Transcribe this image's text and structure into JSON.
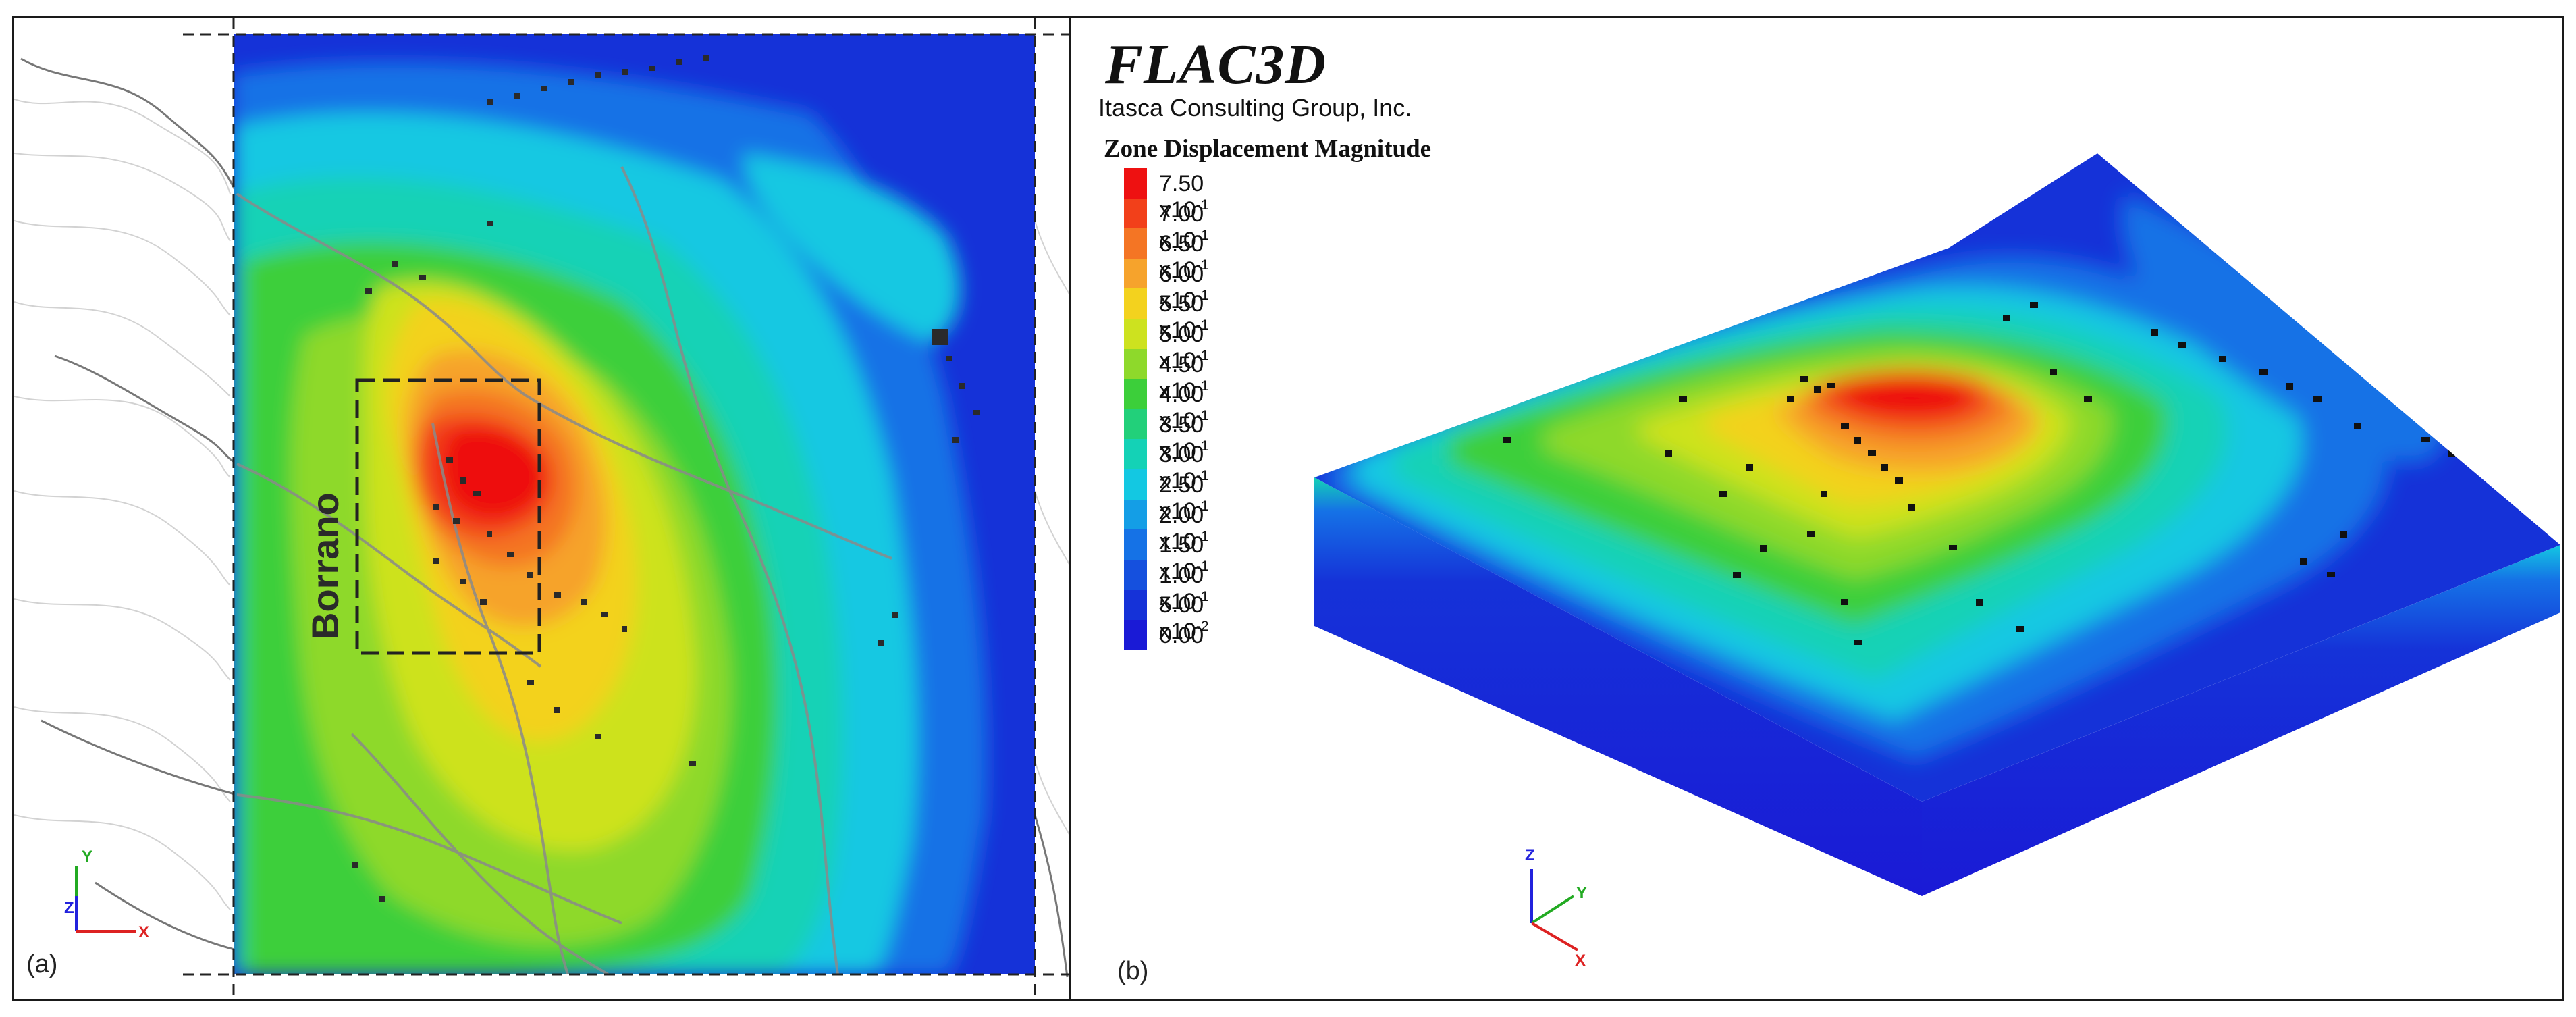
{
  "panel_a": {
    "label": "(a)",
    "place_label": "Borrano",
    "axis_labels": {
      "y": "Y",
      "z": "Z",
      "x": "X"
    }
  },
  "panel_b": {
    "label": "(b)",
    "title": "FLAC3D",
    "company": "Itasca Consulting Group, Inc.",
    "legend_title": "Zone Displacement Magnitude",
    "legend": [
      {
        "mantissa": "7.50 x10",
        "exp": "-1",
        "color": "#ee1111"
      },
      {
        "mantissa": "7.00 x10",
        "exp": "-1",
        "color": "#f2401a"
      },
      {
        "mantissa": "6.50 x10",
        "exp": "-1",
        "color": "#f47524"
      },
      {
        "mantissa": "6.00 x10",
        "exp": "-1",
        "color": "#f6a32c"
      },
      {
        "mantissa": "5.50 x10",
        "exp": "-1",
        "color": "#f3d21e"
      },
      {
        "mantissa": "5.00 x10",
        "exp": "-1",
        "color": "#cde21f"
      },
      {
        "mantissa": "4.50 x10",
        "exp": "-1",
        "color": "#8ed92b"
      },
      {
        "mantissa": "4.00 x10",
        "exp": "-1",
        "color": "#3ccf3a"
      },
      {
        "mantissa": "3.50 x10",
        "exp": "-1",
        "color": "#22d07a"
      },
      {
        "mantissa": "3.00 x10",
        "exp": "-1",
        "color": "#14d2b6"
      },
      {
        "mantissa": "2.50 x10",
        "exp": "-1",
        "color": "#13c8e2"
      },
      {
        "mantissa": "2.00 x10",
        "exp": "-1",
        "color": "#149ee6"
      },
      {
        "mantissa": "1.50 x10",
        "exp": "-1",
        "color": "#1572e6"
      },
      {
        "mantissa": "1.00 x10",
        "exp": "-1",
        "color": "#1550de"
      },
      {
        "mantissa": "5.00 x10",
        "exp": "-2",
        "color": "#1532d8"
      },
      {
        "mantissa": "0.00",
        "exp": "",
        "color": "#1a1ad6"
      }
    ],
    "axis_labels": {
      "z": "Z",
      "y": "Y",
      "x": "X"
    }
  },
  "colors": {
    "red": "#ee1111",
    "orange": "#f47524",
    "yellow": "#f3d21e",
    "green": "#3ccf3a",
    "cyan": "#13c8e2",
    "blue": "#1532d8"
  }
}
